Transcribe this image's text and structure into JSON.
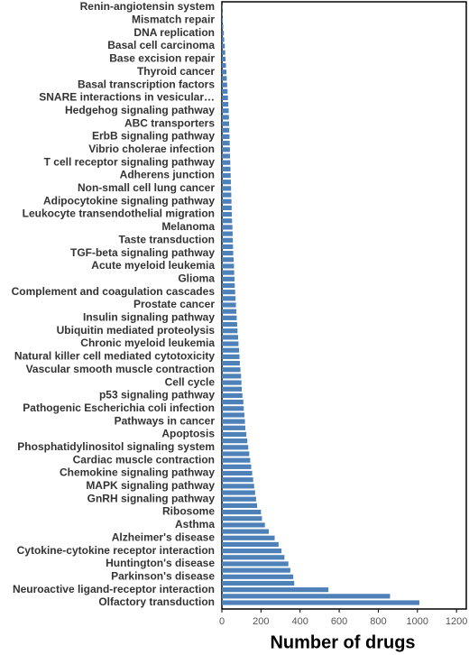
{
  "chart_data": {
    "type": "barh",
    "x_label": "Number of drugs",
    "categories": [
      "Renin-angiotensin system",
      null,
      "Mismatch repair",
      null,
      "DNA replication",
      null,
      "Basal cell carcinoma",
      null,
      "Base excision repair",
      null,
      "Thyroid cancer",
      null,
      "Basal transcription factors",
      null,
      "SNARE interactions in vesicular…",
      null,
      "Hedgehog signaling pathway",
      null,
      "ABC transporters",
      null,
      "ErbB signaling pathway",
      null,
      "Vibrio cholerae infection",
      null,
      "T cell receptor signaling pathway",
      null,
      "Adherens junction",
      null,
      "Non-small cell lung cancer",
      null,
      "Adipocytokine signaling pathway",
      null,
      "Leukocyte transendothelial migration",
      null,
      "Melanoma",
      null,
      "Taste transduction",
      null,
      "TGF-beta signaling pathway",
      null,
      "Acute myeloid leukemia",
      null,
      "Glioma",
      null,
      "Complement and coagulation cascades",
      null,
      "Prostate cancer",
      null,
      "Insulin signaling pathway",
      null,
      "Ubiquitin mediated proteolysis",
      null,
      "Chronic myeloid leukemia",
      null,
      "Natural killer cell mediated cytotoxicity",
      null,
      "Vascular smooth muscle contraction",
      null,
      "Cell cycle",
      null,
      "p53 signaling pathway",
      null,
      "Pathogenic Escherichia coli infection",
      null,
      "Pathways in cancer",
      null,
      "Apoptosis",
      null,
      "Phosphatidylinositol signaling system",
      null,
      "Cardiac muscle contraction",
      null,
      "Chemokine signaling pathway",
      null,
      "MAPK signaling pathway",
      null,
      "GnRH signaling pathway",
      null,
      "Ribosome",
      null,
      "Asthma",
      null,
      "Alzheimer's disease",
      null,
      "Cytokine-cytokine receptor interaction",
      null,
      "Huntington's disease",
      null,
      "Parkinson's disease",
      null,
      "Neuroactive ligand-receptor interaction",
      null,
      "Olfactory transduction"
    ],
    "values": [
      2,
      3,
      5,
      7,
      10,
      12,
      15,
      17,
      19,
      21,
      23,
      25,
      27,
      29,
      31,
      33,
      35,
      36,
      37,
      38,
      39,
      40,
      41,
      42,
      43,
      44,
      45,
      46,
      47,
      48,
      49,
      50,
      51,
      52,
      54,
      55,
      56,
      57,
      58,
      60,
      62,
      63,
      65,
      66,
      68,
      70,
      72,
      74,
      76,
      78,
      80,
      83,
      85,
      88,
      90,
      92,
      95,
      98,
      100,
      102,
      105,
      110,
      112,
      115,
      118,
      120,
      125,
      130,
      135,
      140,
      145,
      150,
      155,
      160,
      165,
      170,
      175,
      180,
      200,
      205,
      220,
      240,
      270,
      290,
      305,
      320,
      340,
      350,
      365,
      370,
      545,
      860,
      1010
    ],
    "color": "#4f81b9",
    "xlim": [
      0,
      1250
    ],
    "xticks": [
      0,
      200,
      400,
      600,
      800,
      1000,
      1200
    ]
  }
}
